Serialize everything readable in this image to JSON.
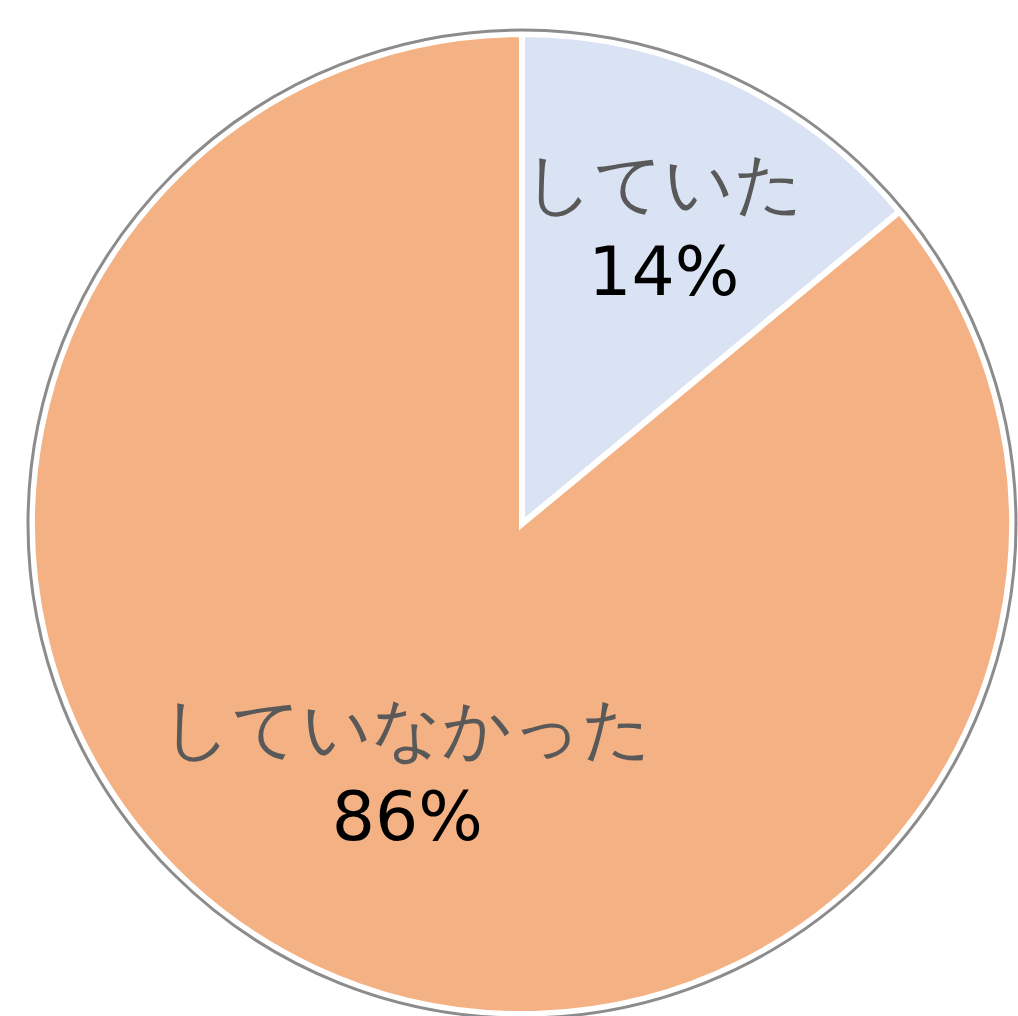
{
  "chart_data": {
    "type": "pie",
    "categories": [
      "していた",
      "していなかった"
    ],
    "values": [
      14,
      86
    ],
    "colors": [
      "#dae3f3",
      "#f4b183"
    ],
    "value_labels": [
      "14%",
      "86%"
    ]
  }
}
